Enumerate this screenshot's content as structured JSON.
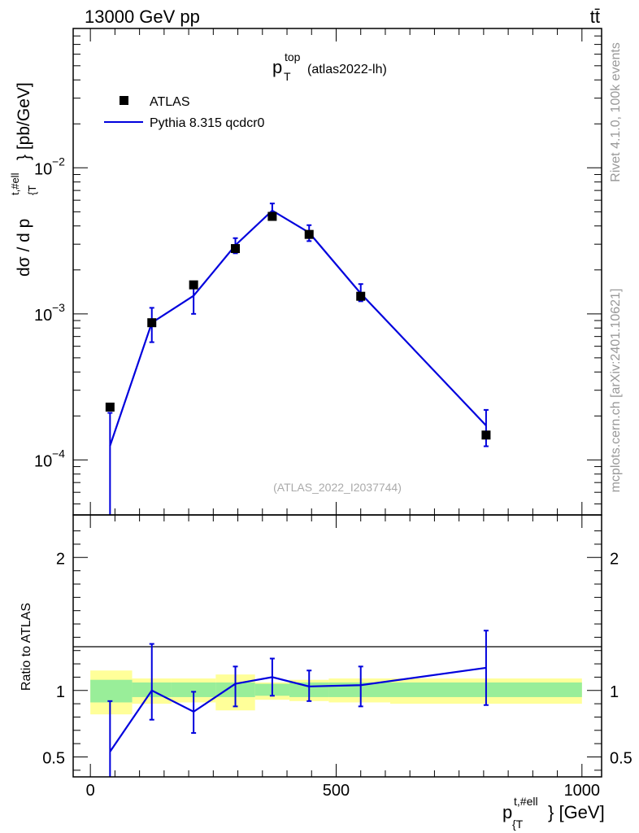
{
  "header": {
    "energy_label": "13000 GeV pp",
    "process_label": "tt̄"
  },
  "side_text": {
    "rivet": "Rivet 4.1.0,  100k events",
    "mcplots": "mcplots.cern.ch [arXiv:2401.10621]"
  },
  "chart_data": [
    {
      "type": "scatter",
      "title": {
        "main": "p",
        "sup": "top",
        "sub": "T",
        "suffix": "(atlas2022-lh)"
      },
      "watermark": "(ATLAS_2022_I2037744)",
      "xlabel": {
        "main": "p",
        "sup": "t,#ell",
        "sub": "{T",
        "suffix": "} [GeV]"
      },
      "ylabel": {
        "prefix": "dσ / d p",
        "sup": "t,#ell",
        "sub": "{T",
        "suffix": "} [pb/GeV]"
      },
      "yscale": "log",
      "xlim": [
        -35,
        1040
      ],
      "ylim": [
        4.2e-05,
        0.09
      ],
      "legend_position": "top-left",
      "y_major_ticks": [
        {
          "value": 0.0001,
          "base": "10",
          "exp": "−4"
        },
        {
          "value": 0.001,
          "base": "10",
          "exp": "−3"
        },
        {
          "value": 0.01,
          "base": "10",
          "exp": "−2"
        }
      ],
      "series": [
        {
          "name": "ATLAS",
          "style": "markers",
          "color": "#000000",
          "x": [
            40,
            125,
            210,
            295,
            370,
            445,
            550,
            805
          ],
          "y": [
            0.00023,
            0.00087,
            0.00158,
            0.0028,
            0.00465,
            0.0035,
            0.00132,
            0.000148
          ]
        },
        {
          "name": "Pythia 8.315 qcdcr0",
          "style": "line",
          "color": "#0000dd",
          "x": [
            40,
            125,
            210,
            295,
            370,
            445,
            550,
            805
          ],
          "y": [
            0.000125,
            0.00087,
            0.00133,
            0.00295,
            0.0051,
            0.0036,
            0.00138,
            0.000172
          ],
          "err_low": [
            0.000125,
            0.00023,
            0.00033,
            0.00035,
            0.00045,
            0.00045,
            0.00016,
            4.8e-05
          ],
          "err_high": [
            8.5e-05,
            0.00023,
            0.00033,
            0.00035,
            0.0006,
            0.00045,
            0.00022,
            4.8e-05
          ]
        }
      ]
    },
    {
      "type": "line",
      "ylabel": "Ratio to ATLAS",
      "xlim": [
        -35,
        1040
      ],
      "ylim": [
        0.35,
        2.32
      ],
      "x_ticks": [
        0,
        500,
        1000
      ],
      "x_tick_labels": [
        "0",
        "500",
        "1000"
      ],
      "y_ticks": [
        0.5,
        1,
        2
      ],
      "y_tick_labels": [
        "0.5",
        "1",
        "2"
      ],
      "bands": {
        "edges": [
          0,
          85,
          165,
          255,
          335,
          405,
          485,
          610,
          1000
        ],
        "inner_low": [
          0.91,
          0.95,
          0.95,
          0.95,
          0.96,
          0.95,
          0.95,
          0.95
        ],
        "inner_high": [
          1.08,
          1.06,
          1.06,
          1.06,
          1.05,
          1.06,
          1.06,
          1.06
        ],
        "outer_low": [
          0.82,
          0.9,
          0.91,
          0.85,
          0.93,
          0.92,
          0.91,
          0.9
        ],
        "outer_high": [
          1.15,
          1.09,
          1.09,
          1.12,
          1.06,
          1.08,
          1.09,
          1.09
        ]
      },
      "series": [
        {
          "name": "Pythia 8.315 qcdcr0",
          "color": "#0000dd",
          "x": [
            40,
            125,
            210,
            295,
            370,
            445,
            550,
            805
          ],
          "y": [
            0.54,
            1.0,
            0.84,
            1.05,
            1.1,
            1.03,
            1.04,
            1.17
          ],
          "err_low": [
            0.25,
            0.22,
            0.16,
            0.17,
            0.14,
            0.11,
            0.16,
            0.28
          ],
          "err_high": [
            0.38,
            0.35,
            0.15,
            0.13,
            0.14,
            0.12,
            0.14,
            0.28
          ]
        }
      ]
    }
  ]
}
